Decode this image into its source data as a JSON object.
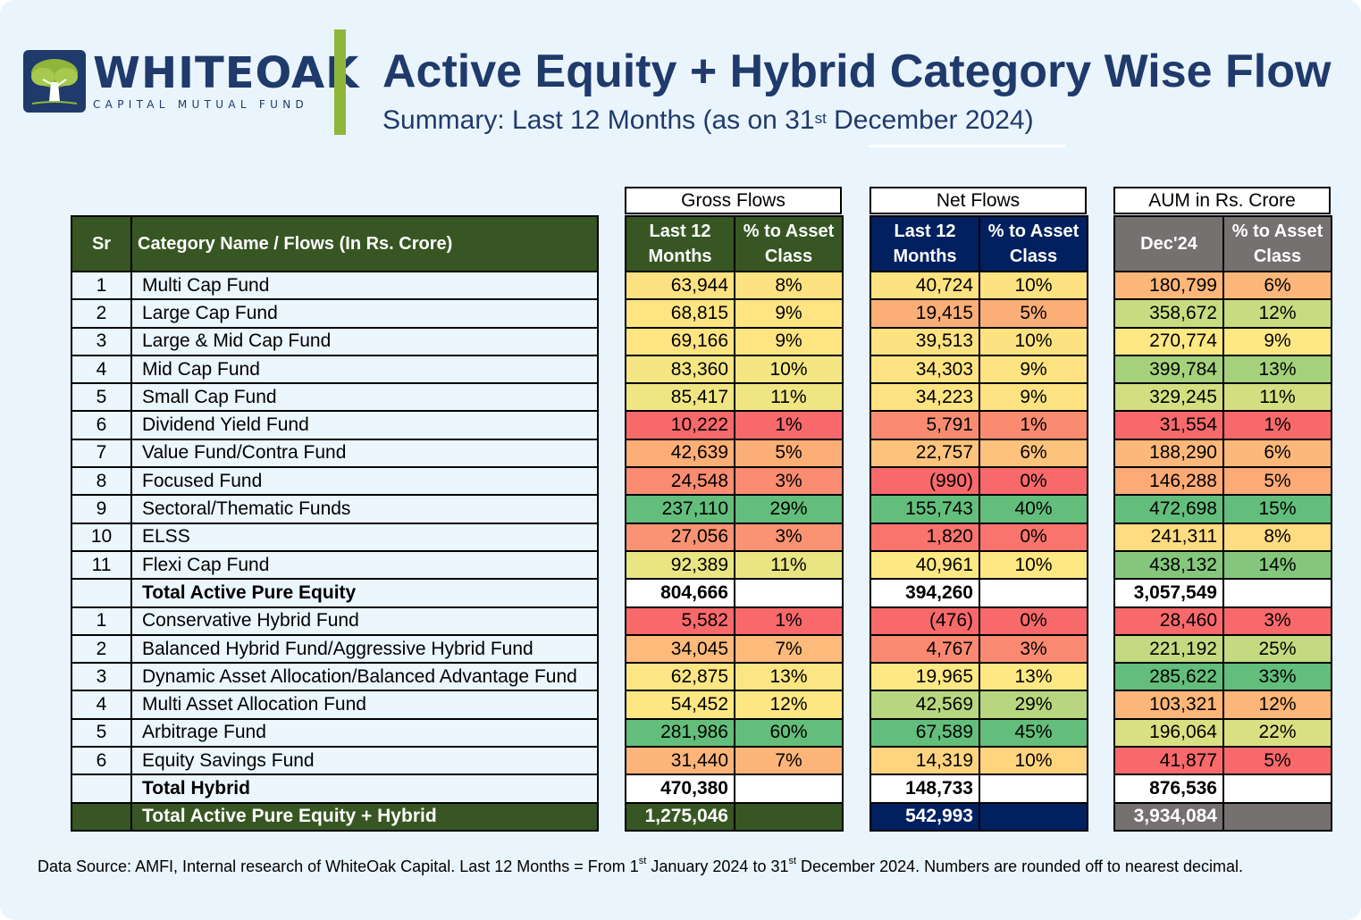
{
  "brand": {
    "name": "WHITEOAK",
    "tagline": "CAPITAL MUTUAL FUND",
    "color": "#1f3a6b",
    "accent": "#8fb63b"
  },
  "title": "Active Equity + Hybrid Category Wise Flow",
  "subtitle": {
    "prefix": "Summary: Last 12 Months (as on 31",
    "sup": "st",
    "suffix": " December 2024)"
  },
  "groups": {
    "gross": "Gross Flows",
    "net": "Net Flows",
    "aum": "AUM in Rs. Crore"
  },
  "headers": {
    "sr": "Sr",
    "category": "Category Name / Flows (In Rs. Crore)",
    "last12": "Last 12 Months",
    "pct": "% to Asset Class",
    "dec24": "Dec'24"
  },
  "rows": [
    {
      "sr": "1",
      "name": "Multi Cap Fund",
      "gross": "63,944",
      "gross_pct": "8%",
      "net": "40,724",
      "net_pct": "10%",
      "aum": "180,799",
      "aum_pct": "6%",
      "colors": [
        "#fde281",
        "#fde281",
        "#fde282",
        "#fde282",
        "#fcb679",
        "#fcb679"
      ]
    },
    {
      "sr": "2",
      "name": "Large Cap Fund",
      "gross": "68,815",
      "gross_pct": "9%",
      "net": "19,415",
      "net_pct": "5%",
      "aum": "358,672",
      "aum_pct": "12%",
      "colors": [
        "#fee582",
        "#fee582",
        "#fcae77",
        "#fcae77",
        "#c9db80",
        "#c9db80"
      ]
    },
    {
      "sr": "3",
      "name": "Large & Mid Cap Fund",
      "gross": "69,166",
      "gross_pct": "9%",
      "net": "39,513",
      "net_pct": "10%",
      "aum": "270,774",
      "aum_pct": "9%",
      "colors": [
        "#fee582",
        "#fee582",
        "#fde282",
        "#fde282",
        "#fde884",
        "#fde884"
      ]
    },
    {
      "sr": "4",
      "name": "Mid Cap Fund",
      "gross": "83,360",
      "gross_pct": "10%",
      "net": "34,303",
      "net_pct": "9%",
      "aum": "399,784",
      "aum_pct": "13%",
      "colors": [
        "#f3e683",
        "#f3e683",
        "#fee382",
        "#fee382",
        "#a6d17c",
        "#a6d17c"
      ]
    },
    {
      "sr": "5",
      "name": "Small Cap Fund",
      "gross": "85,417",
      "gross_pct": "11%",
      "net": "34,223",
      "net_pct": "9%",
      "aum": "329,245",
      "aum_pct": "11%",
      "colors": [
        "#efe683",
        "#efe683",
        "#fee382",
        "#fee382",
        "#d2df81",
        "#d2df81"
      ]
    },
    {
      "sr": "6",
      "name": "Dividend Yield Fund",
      "gross": "10,222",
      "gross_pct": "1%",
      "net": "5,791",
      "net_pct": "1%",
      "aum": "31,554",
      "aum_pct": "1%",
      "colors": [
        "#f8696b",
        "#f8696b",
        "#f98c70",
        "#f98c70",
        "#f8696b",
        "#f8696b"
      ]
    },
    {
      "sr": "7",
      "name": "Value Fund/Contra Fund",
      "gross": "42,639",
      "gross_pct": "5%",
      "net": "22,757",
      "net_pct": "6%",
      "aum": "188,290",
      "aum_pct": "6%",
      "colors": [
        "#fcae77",
        "#fcae77",
        "#fdc37c",
        "#fdc37c",
        "#fcb87a",
        "#fcb87a"
      ]
    },
    {
      "sr": "8",
      "name": "Focused Fund",
      "gross": "24,548",
      "gross_pct": "3%",
      "net": "(990)",
      "net_pct": "0%",
      "aum": "146,288",
      "aum_pct": "5%",
      "colors": [
        "#fa8c72",
        "#fa8c72",
        "#f8696b",
        "#f8696b",
        "#fcaa76",
        "#fcaa76"
      ]
    },
    {
      "sr": "9",
      "name": "Sectoral/Thematic Funds",
      "gross": "237,110",
      "gross_pct": "29%",
      "net": "155,743",
      "net_pct": "40%",
      "aum": "472,698",
      "aum_pct": "15%",
      "colors": [
        "#63be7b",
        "#63be7b",
        "#63be7b",
        "#63be7b",
        "#63be7b",
        "#63be7b"
      ]
    },
    {
      "sr": "10",
      "name": "ELSS",
      "gross": "27,056",
      "gross_pct": "3%",
      "net": "1,820",
      "net_pct": "0%",
      "aum": "241,311",
      "aum_pct": "8%",
      "colors": [
        "#fa9373",
        "#fa9373",
        "#f8746d",
        "#f8746d",
        "#fedc81",
        "#fedc81"
      ]
    },
    {
      "sr": "11",
      "name": "Flexi Cap Fund",
      "gross": "92,389",
      "gross_pct": "11%",
      "net": "40,961",
      "net_pct": "10%",
      "aum": "438,132",
      "aum_pct": "14%",
      "colors": [
        "#e9e583",
        "#e9e583",
        "#fee883",
        "#fee883",
        "#84c77c",
        "#84c77c"
      ]
    },
    {
      "sr": "",
      "name": "Total Active Pure Equity",
      "gross": "804,666",
      "gross_pct": "",
      "net": "394,260",
      "net_pct": "",
      "aum": "3,057,549",
      "aum_pct": "",
      "total": true
    },
    {
      "sr": "1",
      "name": "Conservative Hybrid Fund",
      "gross": "5,582",
      "gross_pct": "1%",
      "net": "(476)",
      "net_pct": "0%",
      "aum": "28,460",
      "aum_pct": "3%",
      "colors": [
        "#f8696b",
        "#f8696b",
        "#f8696b",
        "#f8696b",
        "#f8696b",
        "#f8696b"
      ]
    },
    {
      "sr": "2",
      "name": "Balanced Hybrid Fund/Aggressive Hybrid Fund",
      "gross": "34,045",
      "gross_pct": "7%",
      "net": "4,767",
      "net_pct": "3%",
      "aum": "221,192",
      "aum_pct": "25%",
      "colors": [
        "#fdba7a",
        "#fdba7a",
        "#f98970",
        "#f98970",
        "#c4da80",
        "#c4da80"
      ]
    },
    {
      "sr": "3",
      "name": "Dynamic Asset Allocation/Balanced Advantage Fund",
      "gross": "62,875",
      "gross_pct": "13%",
      "net": "19,965",
      "net_pct": "13%",
      "aum": "285,622",
      "aum_pct": "33%",
      "colors": [
        "#fbe683",
        "#fbe683",
        "#fde883",
        "#fde883",
        "#63be7b",
        "#63be7b"
      ]
    },
    {
      "sr": "4",
      "name": "Multi Asset Allocation Fund",
      "gross": "54,452",
      "gross_pct": "12%",
      "net": "42,569",
      "net_pct": "29%",
      "aum": "103,321",
      "aum_pct": "12%",
      "colors": [
        "#fee783",
        "#fee783",
        "#b7d67f",
        "#b7d67f",
        "#fcb679",
        "#fcb679"
      ]
    },
    {
      "sr": "5",
      "name": "Arbitrage Fund",
      "gross": "281,986",
      "gross_pct": "60%",
      "net": "67,589",
      "net_pct": "45%",
      "aum": "196,064",
      "aum_pct": "22%",
      "colors": [
        "#63be7b",
        "#63be7b",
        "#63be7b",
        "#63be7b",
        "#d9e081",
        "#d9e081"
      ]
    },
    {
      "sr": "6",
      "name": "Equity Savings Fund",
      "gross": "31,440",
      "gross_pct": "7%",
      "net": "14,319",
      "net_pct": "10%",
      "aum": "41,877",
      "aum_pct": "5%",
      "colors": [
        "#fcb479",
        "#fcb479",
        "#fed47f",
        "#fed47f",
        "#f8696b",
        "#f8696b"
      ]
    },
    {
      "sr": "",
      "name": "Total Hybrid",
      "gross": "470,380",
      "gross_pct": "",
      "net": "148,733",
      "net_pct": "",
      "aum": "876,536",
      "aum_pct": "",
      "total": true
    },
    {
      "sr": "",
      "name": "Total Active Pure Equity + Hybrid",
      "gross": "1,275,046",
      "gross_pct": "",
      "net": "542,993",
      "net_pct": "",
      "aum": "3,934,084",
      "aum_pct": "",
      "grand": true
    }
  ],
  "footer": {
    "p1": "Data Source: AMFI, Internal research of WhiteOak Capital. Last 12 Months = From 1",
    "s1": "st",
    "p2": " January 2024 to 31",
    "s2": "st",
    "p3": " December 2024. Numbers are rounded off to nearest decimal."
  }
}
